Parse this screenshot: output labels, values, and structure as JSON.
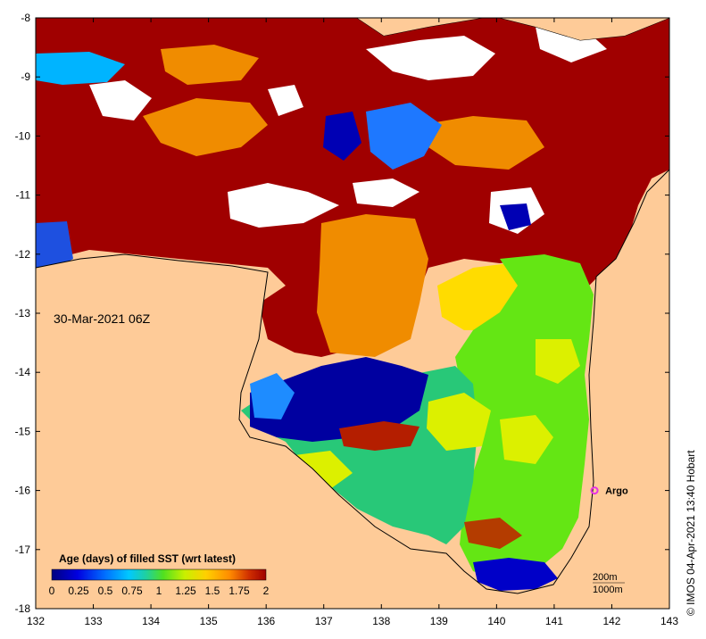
{
  "map": {
    "date_label": "30-Mar-2021 06Z",
    "credit": "© IMOS 04-Apr-2021 13:40 Hobart",
    "land_color": "#fecb98",
    "x_ticks": [
      "132",
      "133",
      "134",
      "135",
      "136",
      "137",
      "138",
      "139",
      "140",
      "141",
      "142",
      "143"
    ],
    "y_ticks": [
      "-8",
      "-9",
      "-10",
      "-11",
      "-12",
      "-13",
      "-14",
      "-15",
      "-16",
      "-17",
      "-18"
    ],
    "lon_range": [
      132,
      143
    ],
    "lat_range": [
      -8,
      -18
    ],
    "argo": {
      "label": "Argo",
      "lon": 141.7,
      "lat": -16.0,
      "color": "#e633e6"
    },
    "contours": {
      "line1": "200m",
      "line2": "1000m"
    },
    "colorbar": {
      "title": "Age (days) of filled SST (wrt latest)",
      "tick_labels": [
        "0",
        "0.25",
        "0.5",
        "0.75",
        "1",
        "1.25",
        "1.5",
        "1.75",
        "2"
      ],
      "colors": [
        "#00007f",
        "#0000d9",
        "#0050ff",
        "#00b4ff",
        "#1ee6c8",
        "#28c878",
        "#64e614",
        "#c8f000",
        "#ffdc00",
        "#ffa500",
        "#e66400",
        "#b41e00",
        "#a00000"
      ]
    }
  }
}
